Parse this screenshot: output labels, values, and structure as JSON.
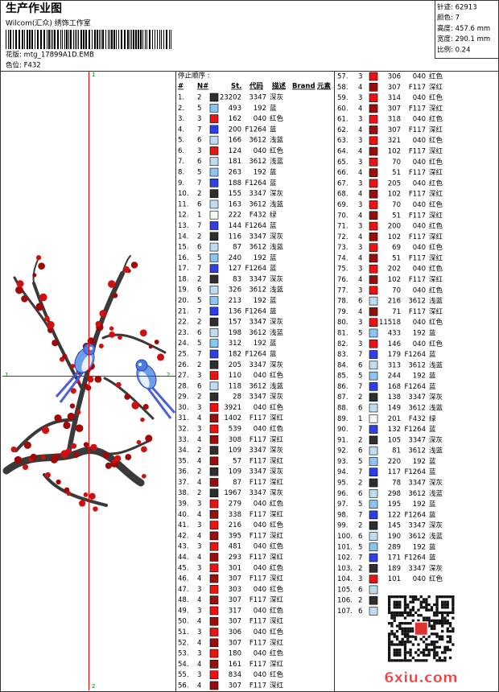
{
  "header": {
    "title": "生产作业图",
    "company": "Wilcom(汇众) 绣饰工作室",
    "design": "花版: mtg_17899A1D.EMB",
    "colorway": "色位: F432"
  },
  "info": [
    "针迹: 62913",
    "颜色: 7",
    "高度: 457.6 mm",
    "宽度: 290.1 mm",
    "比例: 0.24"
  ],
  "table": {
    "label": "停止顺序 :",
    "columns": [
      "#",
      "N#",
      "St.",
      "代码",
      "描述",
      "Brand",
      "元素"
    ],
    "palette": {
      "1": "#f4f8f4",
      "2": "#2e2e2e",
      "3": "#ee1111",
      "4": "#9a0d0d",
      "5": "#8cc6f0",
      "6": "#bfdcf0",
      "7": "#2f3fe8"
    },
    "rows": [
      [
        "1.",
        "2",
        "23202",
        "3347",
        "深灰"
      ],
      [
        "2.",
        "5",
        "493",
        "192",
        "蓝"
      ],
      [
        "3.",
        "3",
        "162",
        "040",
        "红色"
      ],
      [
        "4.",
        "7",
        "200",
        "F1264",
        "蓝"
      ],
      [
        "5.",
        "6",
        "166",
        "3612",
        "浅蓝"
      ],
      [
        "6.",
        "3",
        "124",
        "040",
        "红色"
      ],
      [
        "7.",
        "6",
        "181",
        "3612",
        "浅蓝"
      ],
      [
        "8.",
        "5",
        "263",
        "192",
        "蓝"
      ],
      [
        "9.",
        "7",
        "188",
        "F1264",
        "蓝"
      ],
      [
        "10.",
        "2",
        "155",
        "3347",
        "深灰"
      ],
      [
        "11.",
        "6",
        "163",
        "3612",
        "浅蓝"
      ],
      [
        "12.",
        "1",
        "222",
        "F432",
        "绿"
      ],
      [
        "13.",
        "7",
        "144",
        "F1264",
        "蓝"
      ],
      [
        "14.",
        "2",
        "116",
        "3347",
        "深灰"
      ],
      [
        "15.",
        "6",
        "87",
        "3612",
        "浅蓝"
      ],
      [
        "16.",
        "5",
        "240",
        "192",
        "蓝"
      ],
      [
        "17.",
        "7",
        "127",
        "F1264",
        "蓝"
      ],
      [
        "18.",
        "2",
        "83",
        "3347",
        "深灰"
      ],
      [
        "19.",
        "6",
        "326",
        "3612",
        "浅蓝"
      ],
      [
        "20.",
        "5",
        "213",
        "192",
        "蓝"
      ],
      [
        "21.",
        "7",
        "136",
        "F1264",
        "蓝"
      ],
      [
        "22.",
        "2",
        "157",
        "3347",
        "深灰"
      ],
      [
        "23.",
        "6",
        "198",
        "3612",
        "浅蓝"
      ],
      [
        "24.",
        "5",
        "312",
        "192",
        "蓝"
      ],
      [
        "25.",
        "7",
        "182",
        "F1264",
        "蓝"
      ],
      [
        "26.",
        "2",
        "205",
        "3347",
        "深灰"
      ],
      [
        "27.",
        "3",
        "110",
        "040",
        "红色"
      ],
      [
        "28.",
        "6",
        "118",
        "3612",
        "浅蓝"
      ],
      [
        "29.",
        "2",
        "28",
        "3347",
        "深灰"
      ],
      [
        "30.",
        "3",
        "3921",
        "040",
        "红色"
      ],
      [
        "31.",
        "4",
        "1402",
        "F117",
        "深红"
      ],
      [
        "32.",
        "3",
        "539",
        "040",
        "红色"
      ],
      [
        "33.",
        "4",
        "308",
        "F117",
        "深红"
      ],
      [
        "34.",
        "2",
        "109",
        "3347",
        "深灰"
      ],
      [
        "35.",
        "4",
        "57",
        "F117",
        "深红"
      ],
      [
        "36.",
        "2",
        "109",
        "3347",
        "深灰"
      ],
      [
        "37.",
        "4",
        "87",
        "F117",
        "深红"
      ],
      [
        "38.",
        "2",
        "1967",
        "3347",
        "深灰"
      ],
      [
        "39.",
        "3",
        "279",
        "040",
        "红色"
      ],
      [
        "40.",
        "4",
        "338",
        "F117",
        "深红"
      ],
      [
        "41.",
        "3",
        "216",
        "040",
        "红色"
      ],
      [
        "42.",
        "4",
        "395",
        "F117",
        "深红"
      ],
      [
        "43.",
        "3",
        "481",
        "040",
        "红色"
      ],
      [
        "44.",
        "4",
        "293",
        "F117",
        "深红"
      ],
      [
        "45.",
        "3",
        "301",
        "040",
        "红色"
      ],
      [
        "46.",
        "4",
        "307",
        "F117",
        "深红"
      ],
      [
        "47.",
        "3",
        "303",
        "040",
        "红色"
      ],
      [
        "48.",
        "4",
        "307",
        "F117",
        "深红"
      ],
      [
        "49.",
        "3",
        "317",
        "040",
        "红色"
      ],
      [
        "50.",
        "4",
        "307",
        "F117",
        "深红"
      ],
      [
        "51.",
        "3",
        "306",
        "040",
        "红色"
      ],
      [
        "52.",
        "4",
        "307",
        "F117",
        "深红"
      ],
      [
        "53.",
        "3",
        "180",
        "040",
        "红色"
      ],
      [
        "54.",
        "4",
        "161",
        "F117",
        "深红"
      ],
      [
        "55.",
        "3",
        "834",
        "040",
        "红色"
      ],
      [
        "56.",
        "4",
        "307",
        "F117",
        "深红"
      ],
      [
        "57.",
        "3",
        "306",
        "040",
        "红色"
      ],
      [
        "58.",
        "4",
        "307",
        "F117",
        "深红"
      ],
      [
        "59.",
        "3",
        "314",
        "040",
        "红色"
      ],
      [
        "60.",
        "4",
        "307",
        "F117",
        "深红"
      ],
      [
        "61.",
        "3",
        "318",
        "040",
        "红色"
      ],
      [
        "62.",
        "4",
        "307",
        "F117",
        "深红"
      ],
      [
        "63.",
        "3",
        "321",
        "040",
        "红色"
      ],
      [
        "64.",
        "4",
        "102",
        "F117",
        "深红"
      ],
      [
        "65.",
        "3",
        "70",
        "040",
        "红色"
      ],
      [
        "66.",
        "4",
        "51",
        "F117",
        "深红"
      ],
      [
        "67.",
        "3",
        "205",
        "040",
        "红色"
      ],
      [
        "68.",
        "4",
        "102",
        "F117",
        "深红"
      ],
      [
        "69.",
        "3",
        "70",
        "040",
        "红色"
      ],
      [
        "70.",
        "4",
        "51",
        "F117",
        "深红"
      ],
      [
        "71.",
        "3",
        "200",
        "040",
        "红色"
      ],
      [
        "72.",
        "4",
        "102",
        "F117",
        "深红"
      ],
      [
        "73.",
        "3",
        "69",
        "040",
        "红色"
      ],
      [
        "74.",
        "4",
        "51",
        "F117",
        "深红"
      ],
      [
        "75.",
        "3",
        "202",
        "040",
        "红色"
      ],
      [
        "76.",
        "4",
        "102",
        "F117",
        "深红"
      ],
      [
        "77.",
        "3",
        "70",
        "040",
        "红色"
      ],
      [
        "78.",
        "6",
        "216",
        "3612",
        "浅蓝"
      ],
      [
        "79.",
        "4",
        "71",
        "F117",
        "深红"
      ],
      [
        "80.",
        "3",
        "11518",
        "040",
        "红色"
      ],
      [
        "81.",
        "5",
        "433",
        "192",
        "蓝"
      ],
      [
        "82.",
        "3",
        "146",
        "040",
        "红色"
      ],
      [
        "83.",
        "7",
        "179",
        "F1264",
        "蓝"
      ],
      [
        "84.",
        "6",
        "313",
        "3612",
        "浅蓝"
      ],
      [
        "85.",
        "5",
        "244",
        "192",
        "蓝"
      ],
      [
        "86.",
        "7",
        "168",
        "F1264",
        "蓝"
      ],
      [
        "87.",
        "2",
        "138",
        "3347",
        "深灰"
      ],
      [
        "88.",
        "6",
        "149",
        "3612",
        "浅蓝"
      ],
      [
        "89.",
        "1",
        "201",
        "F432",
        "绿"
      ],
      [
        "90.",
        "7",
        "132",
        "F1264",
        "蓝"
      ],
      [
        "91.",
        "2",
        "105",
        "3347",
        "深灰"
      ],
      [
        "92.",
        "6",
        "81",
        "3612",
        "浅蓝"
      ],
      [
        "93.",
        "5",
        "220",
        "192",
        "蓝"
      ],
      [
        "94.",
        "7",
        "117",
        "F1264",
        "蓝"
      ],
      [
        "95.",
        "2",
        "78",
        "3347",
        "深灰"
      ],
      [
        "96.",
        "6",
        "298",
        "3612",
        "浅蓝"
      ],
      [
        "97.",
        "5",
        "195",
        "192",
        "蓝"
      ],
      [
        "98.",
        "7",
        "122",
        "F1264",
        "蓝"
      ],
      [
        "99.",
        "2",
        "145",
        "3347",
        "深灰"
      ],
      [
        "100.",
        "6",
        "190",
        "3612",
        "浅蓝"
      ],
      [
        "101.",
        "5",
        "289",
        "192",
        "蓝"
      ],
      [
        "102.",
        "7",
        "171",
        "F1264",
        "蓝"
      ],
      [
        "103.",
        "2",
        "189",
        "3347",
        "深灰"
      ],
      [
        "104.",
        "3",
        "101",
        "040",
        "红色"
      ],
      [
        "105.",
        "6"
      ],
      [
        "106.",
        "2"
      ],
      [
        "107.",
        "6"
      ]
    ]
  },
  "markers": {
    "top": "1",
    "left": "1",
    "right": "2",
    "bottom": "2"
  },
  "watermark": "6xiu.com"
}
